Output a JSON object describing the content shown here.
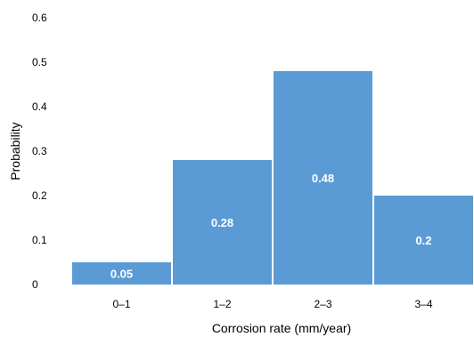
{
  "chart_data": {
    "type": "bar",
    "title": "",
    "xlabel": "Corrosion rate (mm/year)",
    "ylabel": "Probability",
    "categories": [
      "0–1",
      "1–2",
      "2–3",
      "3–4"
    ],
    "values": [
      0.05,
      0.28,
      0.48,
      0.2
    ],
    "data_labels": [
      "0.05",
      "0.28",
      "0.48",
      "0.2"
    ],
    "ylim": [
      0,
      0.6
    ],
    "yticks": [
      0,
      0.1,
      0.2,
      0.3,
      0.4,
      0.5,
      0.6
    ],
    "ytick_labels": [
      "0",
      "0.1",
      "0.2",
      "0.3",
      "0.4",
      "0.5",
      "0.6"
    ],
    "grid": false,
    "legend": "none",
    "bar_color": "#5B9BD5"
  }
}
